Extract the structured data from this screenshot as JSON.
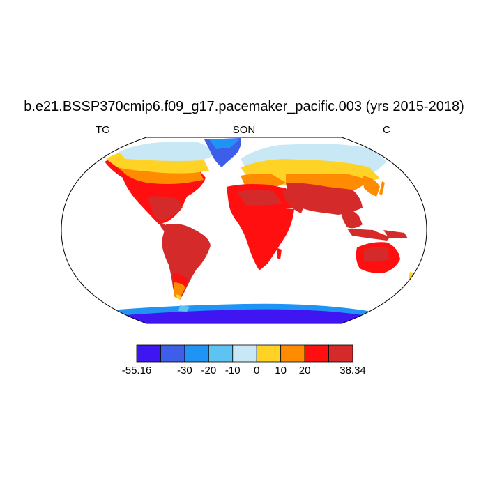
{
  "title": "b.e21.BSSP370cmip6.f09_g17.pacemaker_pacific.003 (yrs 2015-2018)",
  "left_label": "TG",
  "center_label": "SON",
  "right_label": "C",
  "colorbar": {
    "colors": [
      "#3f16f2",
      "#3d5ee8",
      "#1f94f5",
      "#5cc3f2",
      "#c8e8f5",
      "#ffd226",
      "#ff8c00",
      "#ff0f0f",
      "#d42a2a"
    ],
    "tick_labels": [
      "-55.16",
      "-30",
      "-20",
      "-10",
      "0",
      "10",
      "20",
      "38.34"
    ],
    "min": -55.16,
    "max": 38.34,
    "levels": [
      -30,
      -20,
      -10,
      0,
      10,
      20
    ]
  },
  "colors": {
    "ocean": "#ffffff",
    "coast": "#000000"
  }
}
